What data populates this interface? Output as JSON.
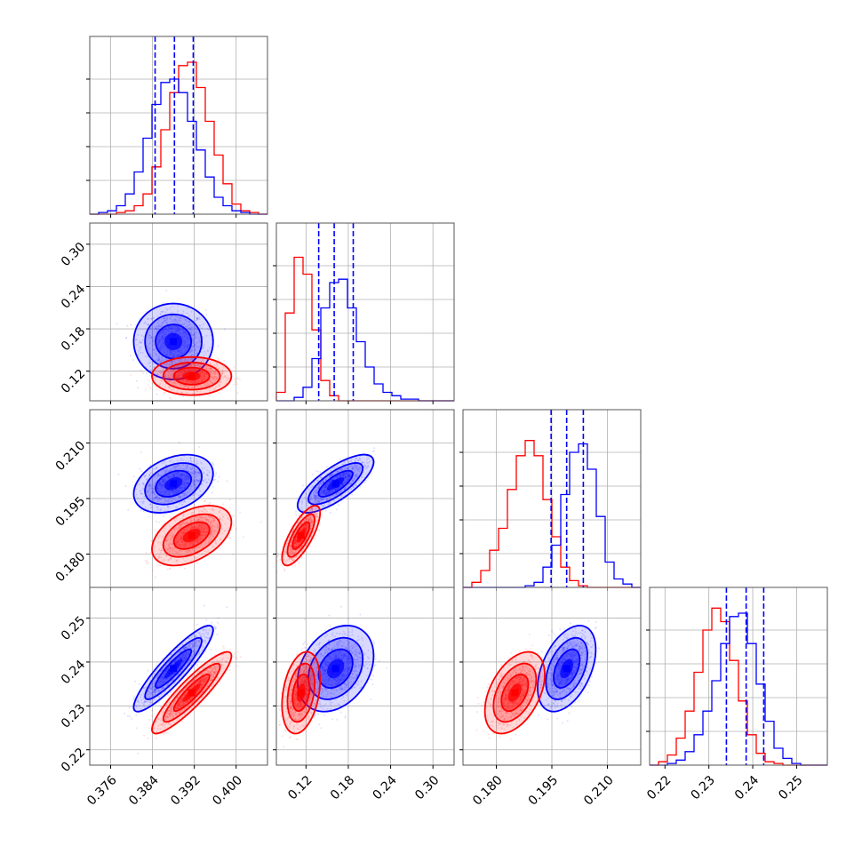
{
  "chart_data": {
    "type": "corner",
    "description_free": true,
    "grid": true,
    "series": [
      {
        "color": "#0000ff",
        "params": [
          {
            "mean": 0.388,
            "sd": 0.0031
          },
          {
            "mean": 0.162,
            "sd": 0.022
          },
          {
            "mean": 0.199,
            "sd": 0.0032
          },
          {
            "mean": 0.2385,
            "sd": 0.004
          }
        ],
        "quantiles": [
          [
            0.3845,
            0.3882,
            0.3918
          ],
          [
            0.138,
            0.16,
            0.187
          ],
          [
            0.1948,
            0.199,
            0.2035
          ],
          [
            0.234,
            0.2385,
            0.2425
          ]
        ]
      },
      {
        "color": "#ff0000",
        "params": [
          {
            "mean": 0.3915,
            "sd": 0.0031
          },
          {
            "mean": 0.113,
            "sd": 0.011
          },
          {
            "mean": 0.185,
            "sd": 0.0033
          },
          {
            "mean": 0.233,
            "sd": 0.0038
          }
        ]
      }
    ],
    "quantile_line_color": "#0000ff",
    "correlations": {
      "1-0": {
        "blue": 0.0,
        "red": 0.0
      },
      "2-0": {
        "blue": 0.35,
        "red": 0.45
      },
      "2-1": {
        "blue": 0.75,
        "red": 0.75
      },
      "3-0": {
        "blue": 0.9,
        "red": 0.9
      },
      "3-1": {
        "blue": 0.3,
        "red": 0.3
      },
      "3-2": {
        "blue": 0.45,
        "red": 0.45
      }
    },
    "axes": [
      {
        "range": [
          0.372,
          0.406
        ],
        "ticks": [
          0.376,
          0.384,
          0.392,
          0.4
        ],
        "tick_labels": [
          "0.376",
          "0.384",
          "0.392",
          "0.400"
        ]
      },
      {
        "range": [
          0.078,
          0.33
        ],
        "ticks": [
          0.12,
          0.18,
          0.24,
          0.3
        ],
        "tick_labels": [
          "0.12",
          "0.18",
          "0.24",
          "0.30"
        ]
      },
      {
        "range": [
          0.171,
          0.219
        ],
        "ticks": [
          0.18,
          0.195,
          0.21
        ],
        "tick_labels": [
          "0.180",
          "0.195",
          "0.210"
        ]
      },
      {
        "range": [
          0.2165,
          0.257
        ],
        "ticks": [
          0.22,
          0.23,
          0.24,
          0.25
        ],
        "tick_labels": [
          "0.22",
          "0.23",
          "0.24",
          "0.25"
        ]
      }
    ],
    "histograms": [
      {
        "bins": [
          0.372,
          0.406
        ],
        "blue": [
          0.0,
          0.01,
          0.02,
          0.05,
          0.12,
          0.25,
          0.45,
          0.65,
          0.78,
          0.8,
          0.72,
          0.55,
          0.38,
          0.22,
          0.1,
          0.05,
          0.02,
          0.01,
          0.0,
          0.0
        ],
        "red": [
          0.0,
          0.0,
          0.0,
          0.01,
          0.02,
          0.05,
          0.12,
          0.28,
          0.5,
          0.72,
          0.88,
          0.9,
          0.75,
          0.55,
          0.35,
          0.18,
          0.06,
          0.02,
          0.01,
          0.0
        ]
      },
      {
        "bins": [
          0.078,
          0.33
        ],
        "blue": [
          0.0,
          0.0,
          0.02,
          0.08,
          0.25,
          0.55,
          0.7,
          0.72,
          0.55,
          0.35,
          0.2,
          0.1,
          0.05,
          0.03,
          0.01,
          0.01,
          0.0,
          0.0,
          0.0,
          0.0
        ],
        "red": [
          0.05,
          0.52,
          0.85,
          0.75,
          0.42,
          0.12,
          0.03,
          0.0,
          0.0,
          0.0,
          0.0,
          0.0,
          0.0,
          0.0,
          0.0,
          0.0,
          0.0,
          0.0,
          0.0,
          0.0
        ]
      },
      {
        "bins": [
          0.171,
          0.219
        ],
        "blue": [
          0.0,
          0.0,
          0.0,
          0.0,
          0.0,
          0.0,
          0.0,
          0.01,
          0.03,
          0.12,
          0.25,
          0.55,
          0.8,
          0.85,
          0.7,
          0.42,
          0.15,
          0.05,
          0.02,
          0.0
        ],
        "red": [
          0.0,
          0.03,
          0.1,
          0.22,
          0.35,
          0.58,
          0.78,
          0.87,
          0.78,
          0.52,
          0.3,
          0.12,
          0.04,
          0.01,
          0.0,
          0.0,
          0.0,
          0.0,
          0.0,
          0.0
        ]
      },
      {
        "bins": [
          0.2165,
          0.257
        ],
        "blue": [
          0.0,
          0.0,
          0.01,
          0.03,
          0.08,
          0.18,
          0.32,
          0.5,
          0.72,
          0.88,
          0.9,
          0.72,
          0.48,
          0.26,
          0.1,
          0.04,
          0.01,
          0.0,
          0.0,
          0.0
        ],
        "red": [
          0.0,
          0.02,
          0.06,
          0.16,
          0.32,
          0.55,
          0.8,
          0.93,
          0.85,
          0.62,
          0.38,
          0.18,
          0.07,
          0.02,
          0.01,
          0.0,
          0.0,
          0.0,
          0.0,
          0.0
        ]
      }
    ]
  }
}
